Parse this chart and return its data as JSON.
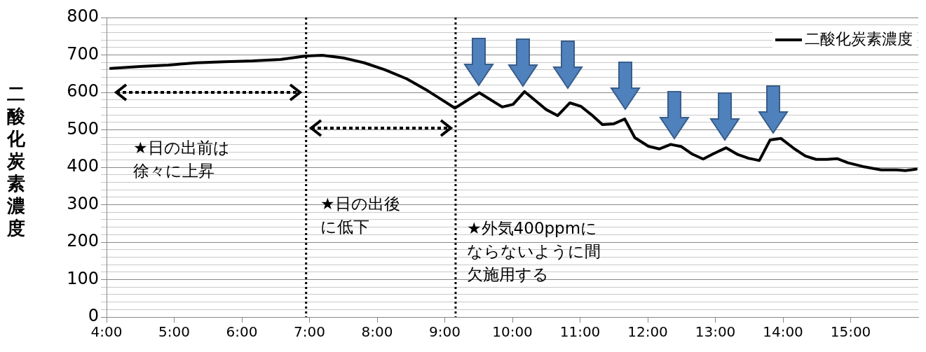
{
  "chart_data": {
    "type": "line",
    "ylabel": "二酸化炭素濃度",
    "legend": "top right",
    "grid": "y",
    "marker": "none",
    "line_style": "solid",
    "xlim": [
      4,
      16
    ],
    "xticks": [
      {
        "value": 4,
        "label": "4:00"
      },
      {
        "value": 5,
        "label": "5:00"
      },
      {
        "value": 6,
        "label": "6:00"
      },
      {
        "value": 7,
        "label": "7:00"
      },
      {
        "value": 8,
        "label": "8:00"
      },
      {
        "value": 9,
        "label": "9:00"
      },
      {
        "value": 10,
        "label": "10:00"
      },
      {
        "value": 11,
        "label": "11:00"
      },
      {
        "value": 12,
        "label": "12:00"
      },
      {
        "value": 13,
        "label": "13:00"
      },
      {
        "value": 14,
        "label": "14:00"
      },
      {
        "value": 15,
        "label": "15:00"
      }
    ],
    "ylim": [
      0,
      800
    ],
    "yticks": [
      0,
      {
        "value": 20,
        "label": null
      },
      {
        "value": 40,
        "label": null
      },
      {
        "value": 60,
        "label": null
      },
      {
        "value": 80,
        "label": null
      },
      100,
      {
        "value": 120,
        "label": null
      },
      {
        "value": 140,
        "label": null
      },
      {
        "value": 160,
        "label": null
      },
      {
        "value": 180,
        "label": null
      },
      200,
      {
        "value": 220,
        "label": null
      },
      {
        "value": 240,
        "label": null
      },
      {
        "value": 260,
        "label": null
      },
      {
        "value": 280,
        "label": null
      },
      300,
      {
        "value": 320,
        "label": null
      },
      {
        "value": 340,
        "label": null
      },
      {
        "value": 360,
        "label": null
      },
      {
        "value": 380,
        "label": null
      },
      400,
      {
        "value": 420,
        "label": null
      },
      {
        "value": 440,
        "label": null
      },
      {
        "value": 460,
        "label": null
      },
      {
        "value": 480,
        "label": null
      },
      500,
      {
        "value": 520,
        "label": null
      },
      {
        "value": 540,
        "label": null
      },
      {
        "value": 560,
        "label": null
      },
      {
        "value": 580,
        "label": null
      },
      600,
      {
        "value": 620,
        "label": null
      },
      {
        "value": 640,
        "label": null
      },
      {
        "value": 660,
        "label": null
      },
      {
        "value": 680,
        "label": null
      },
      700,
      {
        "value": 720,
        "label": null
      },
      {
        "value": 740,
        "label": null
      },
      {
        "value": 760,
        "label": null
      },
      {
        "value": 780,
        "label": null
      },
      800
    ],
    "ref_lines": [
      {
        "axis": "x",
        "value": 6.95,
        "color": "#000000",
        "line_style": "dotted"
      },
      {
        "axis": "x",
        "value": 9.16,
        "color": "#000000",
        "line_style": "dotted"
      }
    ],
    "annotations": [
      "★日の出前は徐々に上昇",
      "★日の出後に低下",
      "★外気400ppmにならないように間欠施用する"
    ],
    "series": [
      {
        "name": "二酸化炭素濃度",
        "color": "#000000",
        "x": [
          4.06,
          4.5,
          4.91,
          5.33,
          5.74,
          6.16,
          6.57,
          6.95,
          7.19,
          7.5,
          7.81,
          8.12,
          8.44,
          8.75,
          8.95,
          9.15,
          9.51,
          9.85,
          10.01,
          10.18,
          10.5,
          10.67,
          10.85,
          11.01,
          11.17,
          11.33,
          11.5,
          11.66,
          11.81,
          12.01,
          12.17,
          12.34,
          12.5,
          12.66,
          12.82,
          12.97,
          13.16,
          13.32,
          13.49,
          13.65,
          13.81,
          13.97,
          14.17,
          14.33,
          14.49,
          14.65,
          14.8,
          14.96,
          15.18,
          15.45,
          15.68,
          15.81,
          15.97
        ],
        "values": [
          664,
          669,
          673,
          679,
          682,
          684,
          688,
          697,
          699,
          692,
          679,
          660,
          636,
          604,
          581,
          558,
          599,
          561,
          568,
          602,
          554,
          538,
          572,
          563,
          540,
          514,
          516,
          529,
          479,
          456,
          449,
          461,
          455,
          435,
          422,
          436,
          452,
          435,
          424,
          418,
          473,
          477,
          449,
          430,
          421,
          421,
          423,
          412,
          402,
          393,
          393,
          391,
          395
        ]
      }
    ]
  }
}
